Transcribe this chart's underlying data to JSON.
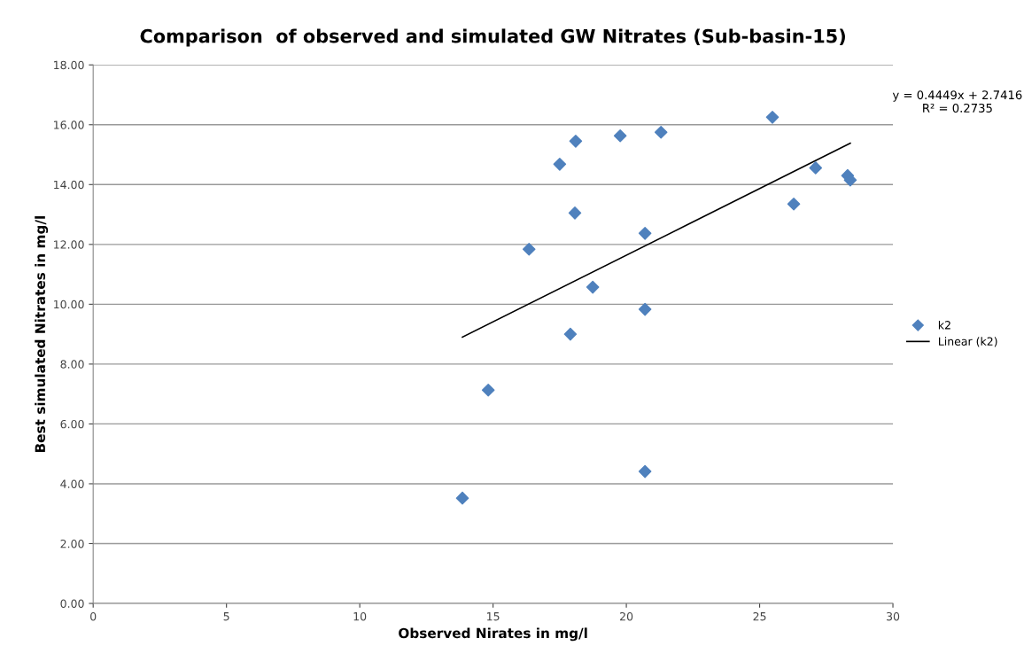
{
  "chart_data": {
    "type": "scatter",
    "title": "Comparison  of observed and simulated GW Nitrates (Sub-basin-15)",
    "xlabel": "Observed Nirates in mg/l",
    "ylabel": "Best simulated Nitrates in mg/l",
    "xlim": [
      0,
      30
    ],
    "xticks": [
      0,
      5,
      10,
      15,
      20,
      25,
      30
    ],
    "ylim": [
      0,
      18
    ],
    "yticks": [
      {
        "value": 0,
        "label": "0.00"
      },
      {
        "value": 2,
        "label": "2.00"
      },
      {
        "value": 4,
        "label": "4.00"
      },
      {
        "value": 6,
        "label": "6.00"
      },
      {
        "value": 8,
        "label": "8.00"
      },
      {
        "value": 10,
        "label": "10.00"
      },
      {
        "value": 12,
        "label": "12.00"
      },
      {
        "value": 14,
        "label": "14.00"
      },
      {
        "value": 16,
        "label": "16.00"
      },
      {
        "value": 18,
        "label": "18.00"
      }
    ],
    "grid": "y",
    "legend": "right",
    "series": [
      {
        "name": "k2",
        "marker": "diamond",
        "color": "#4f81bd",
        "x": [
          13.85,
          14.82,
          16.35,
          17.5,
          18.1,
          18.07,
          17.9,
          18.74,
          19.77,
          21.3,
          20.7,
          20.7,
          20.7,
          25.48,
          26.28,
          27.1,
          28.3,
          28.4
        ],
        "values": [
          3.52,
          7.13,
          11.84,
          14.68,
          15.45,
          13.05,
          9.0,
          10.57,
          15.63,
          15.75,
          12.37,
          9.83,
          4.41,
          16.25,
          13.35,
          14.56,
          14.3,
          14.15
        ]
      },
      {
        "name": "Linear (k2)",
        "type": "line",
        "color": "#000000",
        "x": [
          13.85,
          28.4
        ],
        "values": [
          8.9,
          15.38
        ]
      }
    ],
    "annotations": [
      "y = 0.4449x + 2.7416\nR² = 0.2735"
    ]
  }
}
